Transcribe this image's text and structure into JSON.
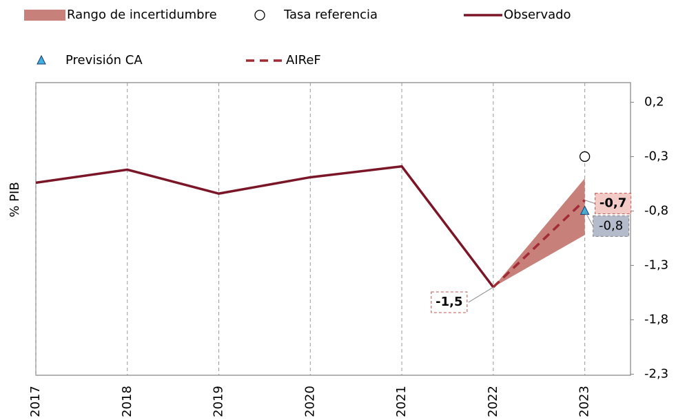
{
  "chart_data": {
    "type": "line",
    "y_label": "% PIB",
    "x": [
      2017,
      2018,
      2019,
      2020,
      2021,
      2022,
      2023
    ],
    "xlim": [
      2017,
      2023.5
    ],
    "xticks": [
      2017,
      2018,
      2019,
      2020,
      2021,
      2022,
      2023
    ],
    "ylim": [
      -2.31,
      0.38
    ],
    "yticks": [
      {
        "value": 0.2,
        "label": "0,2"
      },
      {
        "value": -0.3,
        "label": "-0,3"
      },
      {
        "value": -0.8,
        "label": "-0,8"
      },
      {
        "value": -1.3,
        "label": "-1,3"
      },
      {
        "value": -1.8,
        "label": "-1,8"
      },
      {
        "value": -2.3,
        "label": "-2,3"
      }
    ],
    "grid": "x",
    "series": [
      {
        "name": "Rango de incertidumbre",
        "style": "band",
        "color": "#c8807a",
        "lower": [
          null,
          null,
          null,
          null,
          null,
          -1.5,
          -1.02
        ],
        "upper": [
          null,
          null,
          null,
          null,
          null,
          -1.5,
          -0.5
        ]
      },
      {
        "name": "Tasa referencia",
        "style": "marker",
        "marker": "circle",
        "color": "#ffffff",
        "values": [
          null,
          null,
          null,
          null,
          null,
          null,
          -0.3
        ]
      },
      {
        "name": "Observado",
        "style": "line",
        "color": "#7b1628",
        "values": [
          -0.54,
          -0.42,
          -0.64,
          -0.49,
          -0.39,
          -1.5,
          null
        ],
        "value_labels": [
          null,
          null,
          null,
          null,
          null,
          "-1,5",
          null
        ]
      },
      {
        "name": "Previsión CA",
        "style": "marker",
        "marker": "triangle",
        "color": "#3fb0e0",
        "values": [
          null,
          null,
          null,
          null,
          null,
          null,
          -0.8
        ],
        "value_labels": [
          null,
          null,
          null,
          null,
          null,
          null,
          "-0,8"
        ]
      },
      {
        "name": "AIReF",
        "style": "dashed",
        "color": "#a02a35",
        "values": [
          null,
          null,
          null,
          null,
          null,
          -1.5,
          -0.7
        ],
        "value_labels": [
          null,
          null,
          null,
          null,
          null,
          null,
          "-0,7"
        ]
      }
    ]
  }
}
